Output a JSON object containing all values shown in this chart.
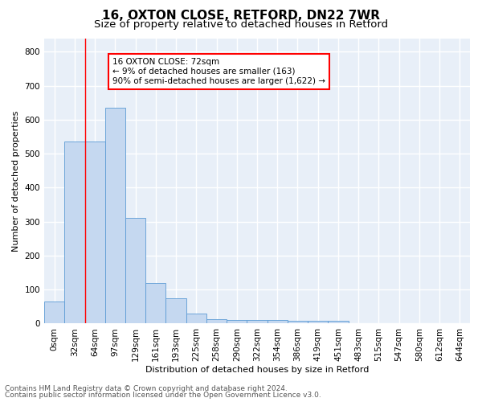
{
  "title1": "16, OXTON CLOSE, RETFORD, DN22 7WR",
  "title2": "Size of property relative to detached houses in Retford",
  "xlabel": "Distribution of detached houses by size in Retford",
  "ylabel": "Number of detached properties",
  "bar_labels": [
    "0sqm",
    "32sqm",
    "64sqm",
    "97sqm",
    "129sqm",
    "161sqm",
    "193sqm",
    "225sqm",
    "258sqm",
    "290sqm",
    "322sqm",
    "354sqm",
    "386sqm",
    "419sqm",
    "451sqm",
    "483sqm",
    "515sqm",
    "547sqm",
    "580sqm",
    "612sqm",
    "644sqm"
  ],
  "bar_values": [
    65,
    535,
    535,
    635,
    310,
    120,
    75,
    30,
    14,
    10,
    10,
    10,
    8,
    8,
    8,
    0,
    0,
    0,
    0,
    0,
    0
  ],
  "bar_color": "#c5d8f0",
  "bar_edge_color": "#5b9bd5",
  "red_line_x": 2.0,
  "annotation_title": "16 OXTON CLOSE: 72sqm",
  "annotation_line1": "← 9% of detached houses are smaller (163)",
  "annotation_line2": "90% of semi-detached houses are larger (1,622) →",
  "ylim": [
    0,
    840
  ],
  "yticks": [
    0,
    100,
    200,
    300,
    400,
    500,
    600,
    700,
    800
  ],
  "footer1": "Contains HM Land Registry data © Crown copyright and database right 2024.",
  "footer2": "Contains public sector information licensed under the Open Government Licence v3.0.",
  "bg_color": "#e8eff8",
  "grid_color": "#ffffff",
  "title1_fontsize": 11,
  "title2_fontsize": 9.5,
  "axis_label_fontsize": 8,
  "tick_fontsize": 7.5,
  "annotation_fontsize": 7.5,
  "footer_fontsize": 6.5
}
